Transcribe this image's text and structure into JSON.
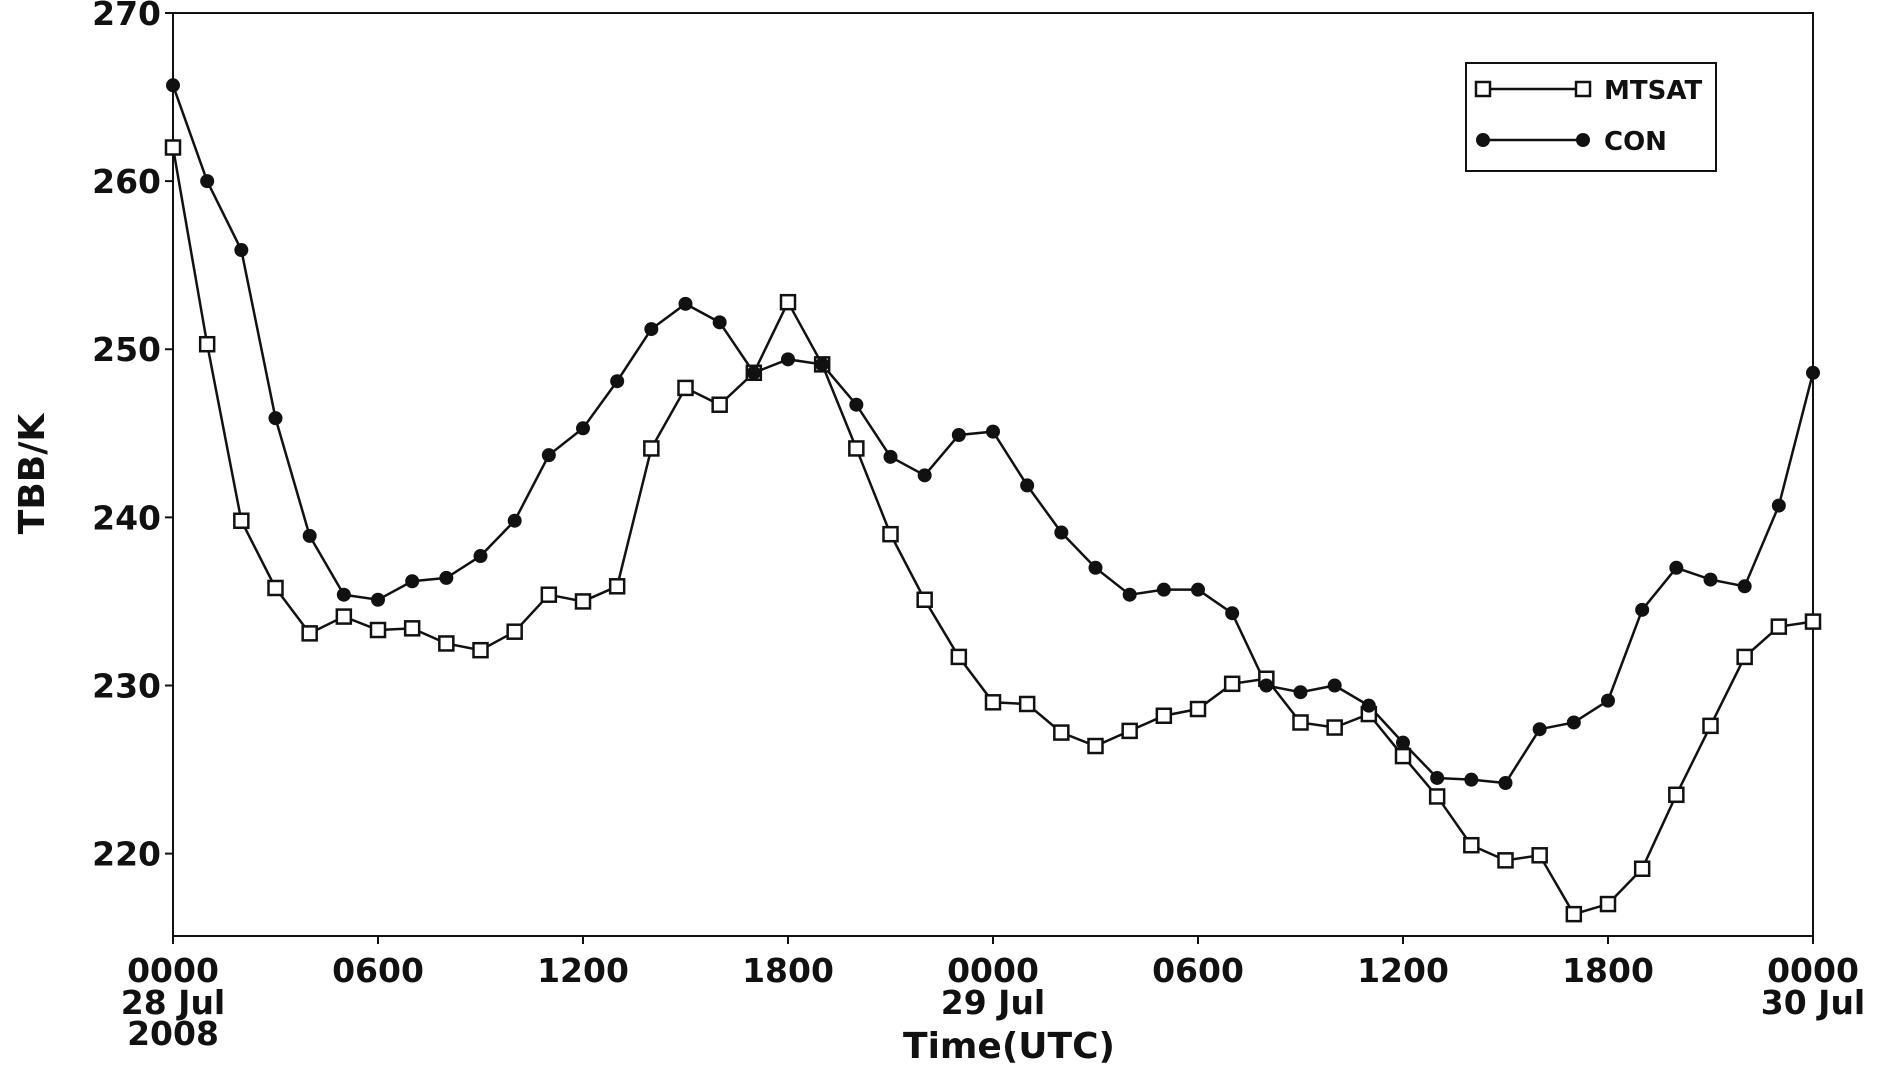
{
  "chart_data": {
    "type": "line",
    "x_label": "Time(UTC)",
    "y_label": "TBB/K",
    "x": [
      0,
      1,
      2,
      3,
      4,
      5,
      6,
      7,
      8,
      9,
      10,
      11,
      12,
      13,
      14,
      15,
      16,
      17,
      18,
      19,
      20,
      21,
      22,
      23,
      24,
      25,
      26,
      27,
      28,
      29,
      30,
      31,
      32,
      33,
      34,
      35,
      36,
      37,
      38,
      39,
      40,
      41,
      42,
      43,
      44,
      45,
      46,
      47,
      48
    ],
    "series": [
      {
        "name": "MTSAT",
        "color": "#111111",
        "marker": "square",
        "values": [
          262.0,
          250.3,
          239.8,
          235.8,
          233.1,
          234.1,
          233.3,
          233.4,
          232.5,
          232.1,
          233.2,
          235.4,
          235.0,
          235.9,
          244.1,
          247.7,
          246.7,
          248.6,
          252.8,
          249.1,
          244.1,
          239.0,
          235.1,
          231.7,
          229.0,
          228.9,
          227.2,
          226.4,
          227.3,
          228.2,
          228.6,
          230.1,
          230.4,
          227.8,
          227.5,
          228.3,
          225.8,
          223.4,
          220.5,
          219.6,
          219.9,
          216.4,
          217.0,
          219.1,
          223.5,
          227.6,
          231.7,
          233.5,
          233.8
        ]
      },
      {
        "name": "CON",
        "color": "#111111",
        "marker": "circle",
        "values": [
          265.7,
          260.0,
          255.9,
          245.9,
          238.9,
          235.4,
          235.1,
          236.2,
          236.4,
          237.7,
          239.8,
          243.7,
          245.3,
          248.1,
          251.2,
          252.7,
          251.6,
          248.6,
          249.4,
          249.1,
          246.7,
          243.6,
          242.5,
          244.9,
          245.1,
          241.9,
          239.1,
          237.0,
          235.4,
          235.7,
          235.7,
          234.3,
          230.0,
          229.6,
          230.0,
          228.8,
          226.6,
          224.5,
          224.4,
          224.2,
          227.4,
          227.8,
          229.1,
          234.5,
          237.0,
          236.3,
          235.9,
          240.7,
          248.6
        ]
      }
    ],
    "xlim": [
      0,
      48
    ],
    "xticks": [
      {
        "value": 0,
        "label": "0000"
      },
      {
        "value": 6,
        "label": "0600"
      },
      {
        "value": 12,
        "label": "1200"
      },
      {
        "value": 18,
        "label": "1800"
      },
      {
        "value": 24,
        "label": "0000"
      },
      {
        "value": 30,
        "label": "0600"
      },
      {
        "value": 36,
        "label": "1200"
      },
      {
        "value": 42,
        "label": "1800"
      },
      {
        "value": 48,
        "label": "0000"
      }
    ],
    "x_date_labels": [
      {
        "value": 0,
        "lines": [
          "28 Jul",
          "2008"
        ]
      },
      {
        "value": 24,
        "lines": [
          "29 Jul"
        ]
      },
      {
        "value": 48,
        "lines": [
          "30 Jul"
        ]
      }
    ],
    "ylim": [
      215.1,
      270
    ],
    "yticks": [
      220,
      230,
      240,
      250,
      260,
      270
    ],
    "legend": "upper right",
    "grid": false
  }
}
